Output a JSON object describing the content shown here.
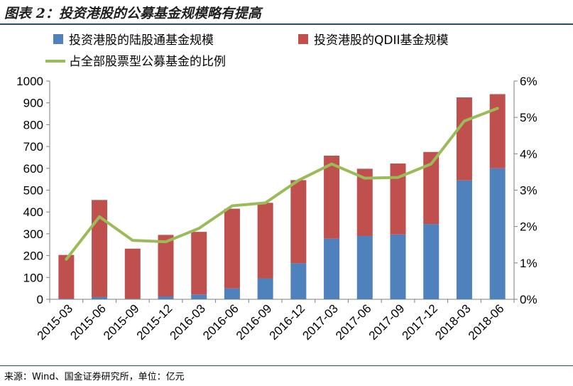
{
  "title": "图表 2：投资港股的公募基金规模略有提高",
  "source": "来源：Wind、国金证券研究所，单位：亿元",
  "chart_data": {
    "type": "bar",
    "stacked": true,
    "categories": [
      "2015-03",
      "2015-06",
      "2015-09",
      "2015-12",
      "2016-03",
      "2016-06",
      "2016-09",
      "2016-12",
      "2017-03",
      "2017-06",
      "2017-09",
      "2017-12",
      "2018-03",
      "2018-06"
    ],
    "series": [
      {
        "name": "投资港股的陆股通基金规模",
        "type": "bar",
        "axis": "left",
        "color": "#4f81bd",
        "values": [
          3,
          10,
          2,
          13,
          22,
          50,
          96,
          165,
          278,
          290,
          297,
          345,
          545,
          600
        ]
      },
      {
        "name": "投资港股的QDII基金规模",
        "type": "bar",
        "axis": "left",
        "color": "#c0504d",
        "values": [
          200,
          445,
          230,
          282,
          287,
          365,
          346,
          381,
          380,
          308,
          325,
          330,
          380,
          340
        ]
      },
      {
        "name": "占全部股票型公募基金的比例",
        "type": "line",
        "axis": "right",
        "color": "#9bbb59",
        "values": [
          1.1,
          2.27,
          1.62,
          1.58,
          1.95,
          2.57,
          2.65,
          3.27,
          3.72,
          3.33,
          3.35,
          3.72,
          4.9,
          5.25
        ]
      }
    ],
    "y_left": {
      "min": 0,
      "max": 1000,
      "ticks": [
        "0",
        "100",
        "200",
        "300",
        "400",
        "500",
        "600",
        "700",
        "800",
        "900",
        "1000"
      ]
    },
    "y_right": {
      "min": 0,
      "max": 6,
      "ticks": [
        "0%",
        "1%",
        "2%",
        "3%",
        "4%",
        "5%",
        "6%"
      ]
    },
    "legend": [
      "投资港股的陆股通基金规模",
      "投资港股的QDII基金规模",
      "占全部股票型公募基金的比例"
    ],
    "legend_position": "top"
  }
}
